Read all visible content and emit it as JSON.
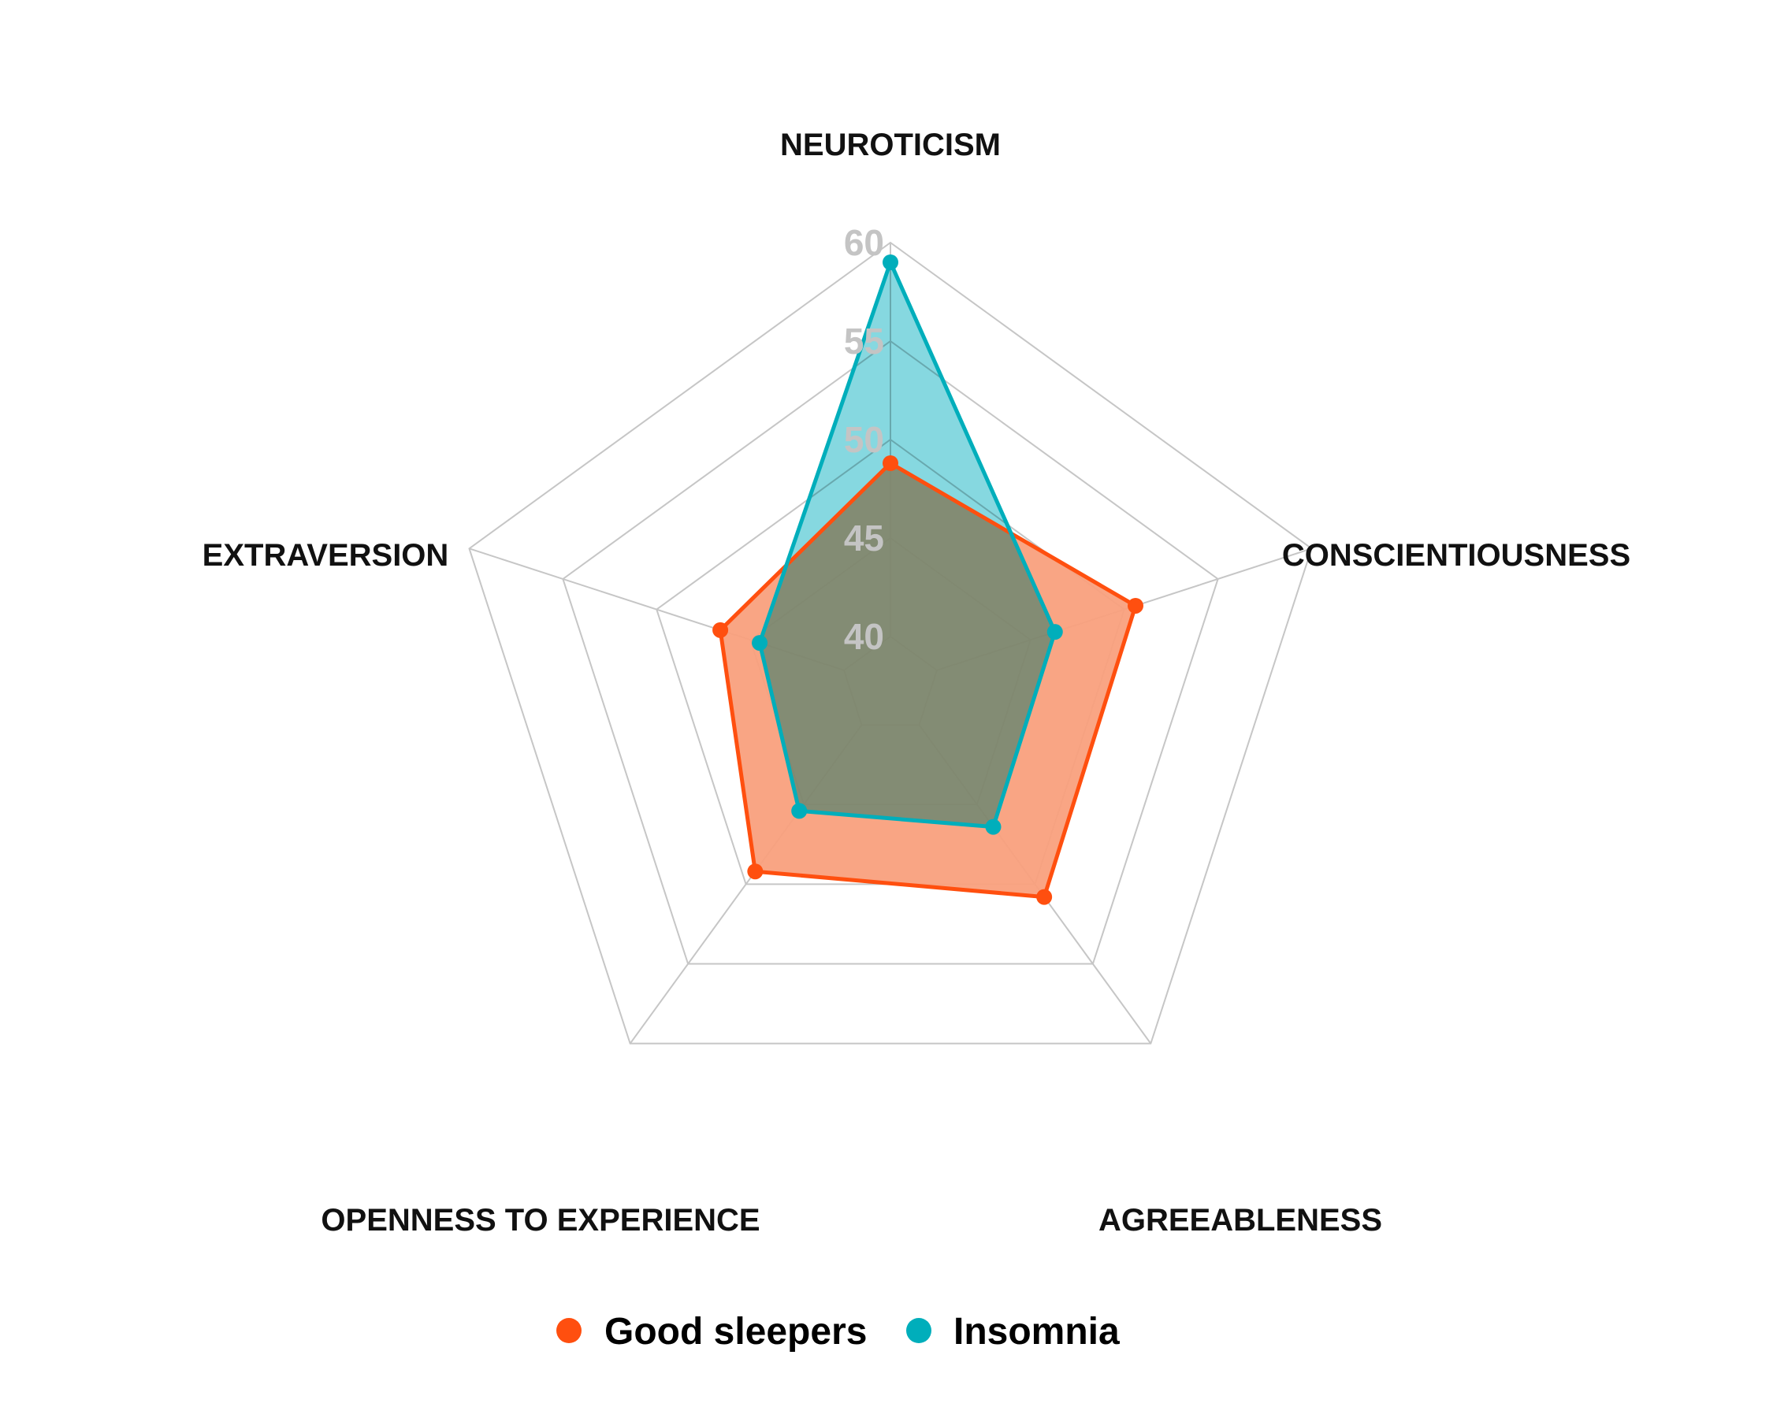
{
  "chart_data": {
    "type": "radar",
    "axes": [
      "NEUROTICISM",
      "CONSCIENTIOUSNESS",
      "AGREEABLENESS",
      "OPENNESS TO EXPERIENCE",
      "EXTRAVERSION"
    ],
    "ticks": [
      "40",
      "45",
      "50",
      "55",
      "60"
    ],
    "range": [
      40,
      60
    ],
    "grid": true,
    "legend_position": "bottom",
    "series": [
      {
        "name": "Good sleepers",
        "color": "#ff4f0f",
        "fill_color": "#f9a07d",
        "values": [
          48.8,
          50.6,
          50.8,
          49.2,
          46.6
        ]
      },
      {
        "name": "Insomnia",
        "color": "#00aebb",
        "fill_color": "#80d6de",
        "values": [
          59.0,
          46.3,
          46.4,
          45.4,
          44.5
        ]
      }
    ]
  }
}
